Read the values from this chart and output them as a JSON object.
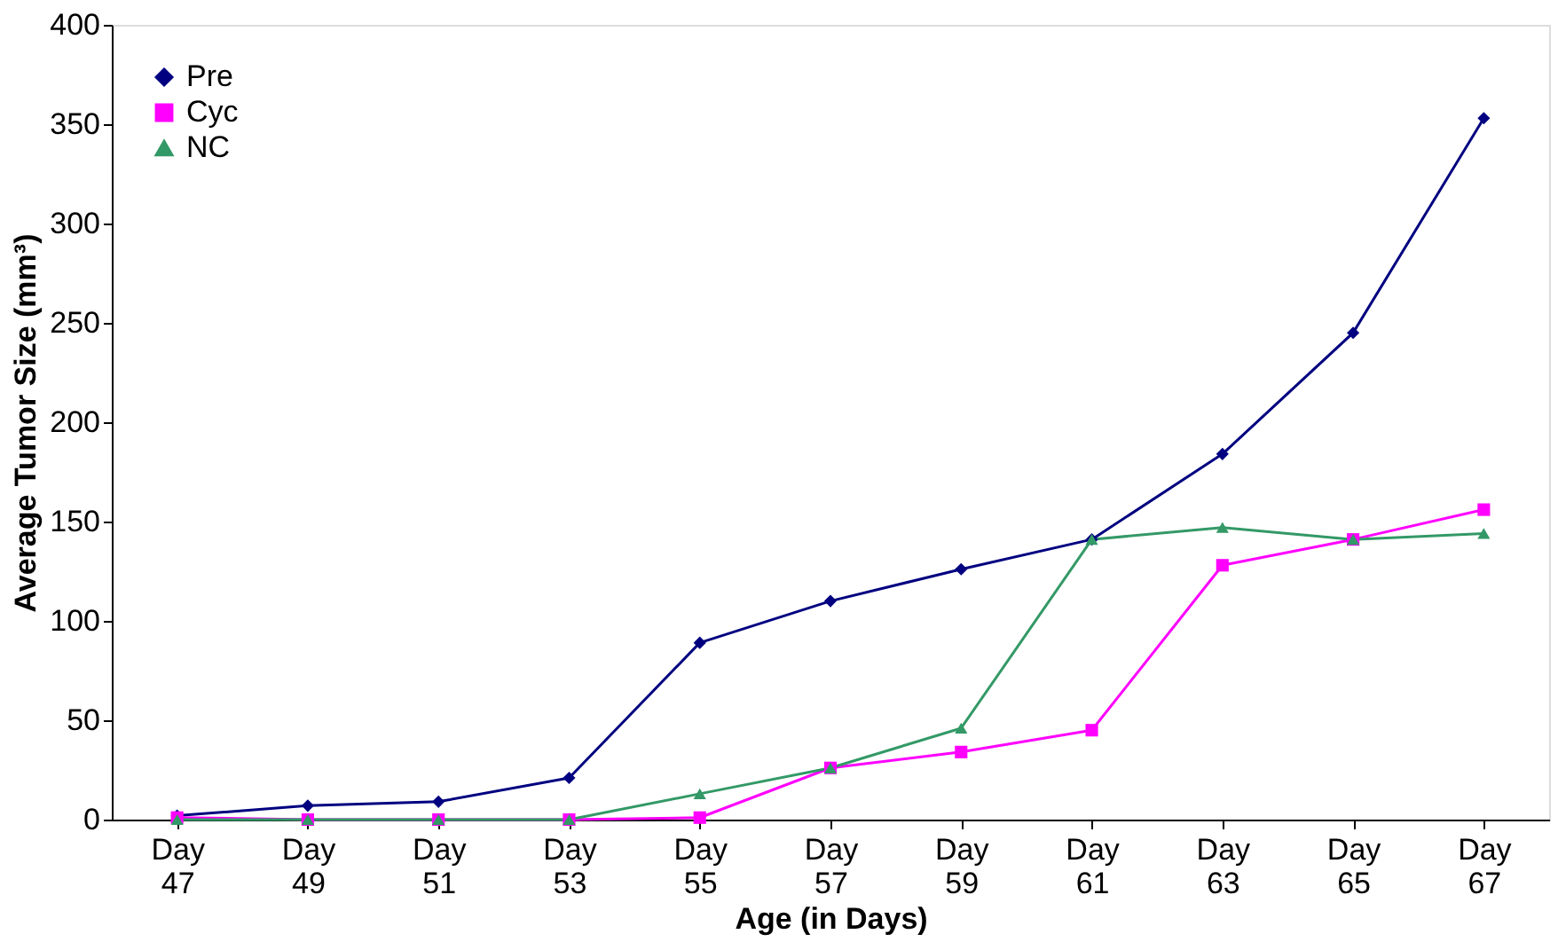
{
  "chart_data": {
    "type": "line",
    "xlabel": "Age (in Days)",
    "ylabel": "Average Tumor Size (mm³)",
    "categories": [
      "Day 47",
      "Day 49",
      "Day 51",
      "Day 53",
      "Day 55",
      "Day 57",
      "Day 59",
      "Day 61",
      "Day 63",
      "Day 65",
      "Day 67"
    ],
    "series": [
      {
        "name": "Pre",
        "color": "#000080",
        "marker": "diamond",
        "values": [
          2,
          7,
          9,
          21,
          89,
          110,
          126,
          141,
          184,
          245,
          353
        ]
      },
      {
        "name": "Cyc",
        "color": "#ff00ff",
        "marker": "square",
        "values": [
          1,
          0,
          0,
          0,
          1,
          26,
          34,
          45,
          128,
          141,
          156
        ]
      },
      {
        "name": "NC",
        "color": "#339966",
        "marker": "triangle",
        "values": [
          0,
          0,
          0,
          0,
          13,
          26,
          46,
          141,
          147,
          141,
          144
        ]
      }
    ],
    "ylim": [
      0,
      400
    ],
    "yticks": [
      0,
      50,
      100,
      150,
      200,
      250,
      300,
      350,
      400
    ],
    "grid": false,
    "legend": "top left",
    "line_style": "solid"
  }
}
